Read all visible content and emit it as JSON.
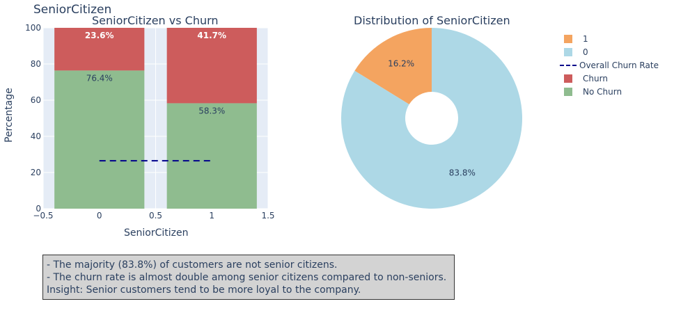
{
  "title": "SeniorCitizen",
  "insights": [
    "- The majority (83.8%) of customers are not senior citizens.",
    "- The churn rate is almost double among senior citizens compared to non-seniors.",
    "Insight: Senior customers tend to be more loyal to the company."
  ],
  "chart_data": [
    {
      "type": "bar",
      "title": "SeniorCitizen vs Churn",
      "xlabel": "SeniorCitizen",
      "ylabel": "Percentage",
      "categories": [
        0,
        1
      ],
      "xlim": [
        -0.5,
        1.5
      ],
      "ylim": [
        0,
        100
      ],
      "xticks": [
        "−0.5",
        "0",
        "0.5",
        "1",
        "1.5"
      ],
      "xtick_values": [
        -0.5,
        0,
        0.5,
        1,
        1.5
      ],
      "yticks": [
        0,
        20,
        40,
        60,
        80,
        100
      ],
      "stacked": true,
      "grid": true,
      "series": [
        {
          "name": "No Churn",
          "values": [
            76.4,
            58.3
          ],
          "labels": [
            "76.4%",
            "58.3%"
          ],
          "color": "#8fbc8f"
        },
        {
          "name": "Churn",
          "values": [
            23.6,
            41.7
          ],
          "labels": [
            "23.6%",
            "41.7%"
          ],
          "color": "#cd5c5c"
        }
      ],
      "overall_churn_rate": {
        "name": "Overall Churn Rate",
        "value": 26.5,
        "x_range": [
          0,
          1
        ],
        "color": "#00008b"
      }
    },
    {
      "type": "pie",
      "title": "Distribution of SeniorCitizen",
      "hole": true,
      "slices": [
        {
          "label": "1",
          "value": 16.2,
          "text": "16.2%",
          "color": "#f4a460"
        },
        {
          "label": "0",
          "value": 83.8,
          "text": "83.8%",
          "color": "#add8e6"
        }
      ]
    }
  ],
  "legend": [
    {
      "label": "1",
      "type": "swatch",
      "color": "#f4a460"
    },
    {
      "label": "0",
      "type": "swatch",
      "color": "#add8e6"
    },
    {
      "label": "Overall Churn Rate",
      "type": "dash",
      "color": "#00008b"
    },
    {
      "label": "Churn",
      "type": "swatch",
      "color": "#cd5c5c"
    },
    {
      "label": "No Churn",
      "type": "swatch",
      "color": "#8fbc8f"
    }
  ]
}
